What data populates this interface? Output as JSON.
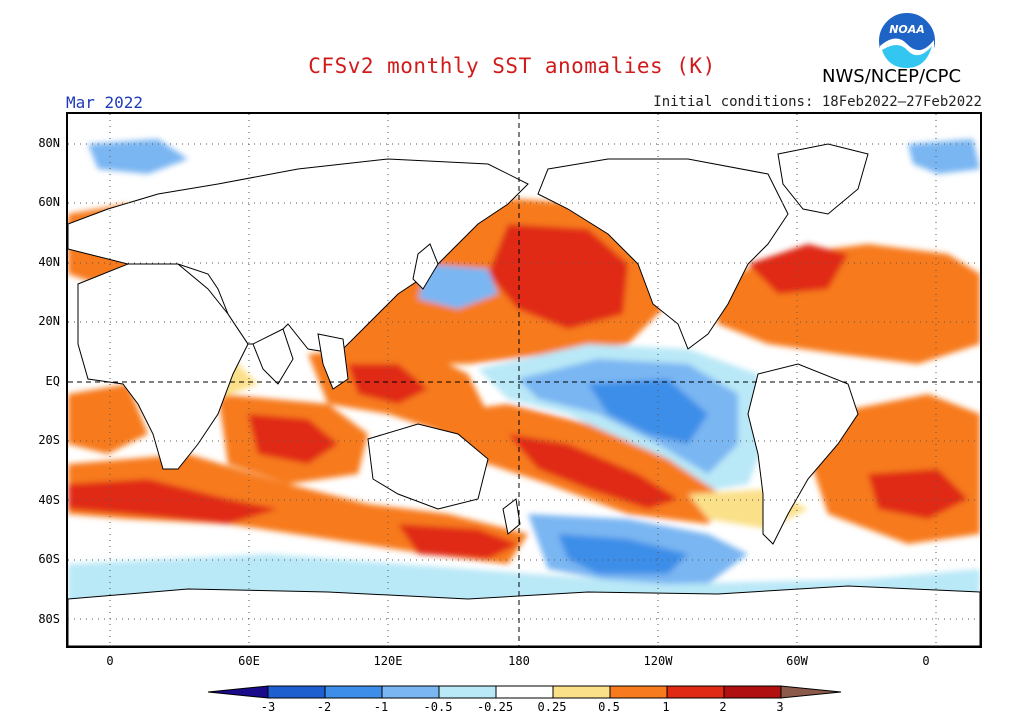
{
  "header": {
    "title": "CFSv2 monthly SST anomalies (K)",
    "agency": "NWS/NCEP/CPC",
    "logo_text": "NOAA",
    "valid_month": "Mar 2022",
    "initial_conditions": "Initial conditions: 18Feb2022–27Feb2022"
  },
  "map": {
    "lat_labels": [
      "80N",
      "60N",
      "40N",
      "20N",
      "EQ",
      "20S",
      "40S",
      "60S",
      "80S"
    ],
    "lon_labels": [
      "0",
      "60E",
      "120E",
      "180",
      "120W",
      "60W",
      "0"
    ],
    "projection": "cylindrical equidistant, centered on 180"
  },
  "colorbar": {
    "labels": [
      "-3",
      "-2",
      "-1",
      "-0.5",
      "-0.25",
      "0.25",
      "0.5",
      "1",
      "2",
      "3"
    ],
    "colors": [
      "#1a0a8c",
      "#1e5fd0",
      "#3d8ee8",
      "#7ab6f2",
      "#b9e8f7",
      "#ffffff",
      "#fbe08a",
      "#f77a1e",
      "#e02a14",
      "#b01010",
      "#8b5a4a"
    ]
  }
}
